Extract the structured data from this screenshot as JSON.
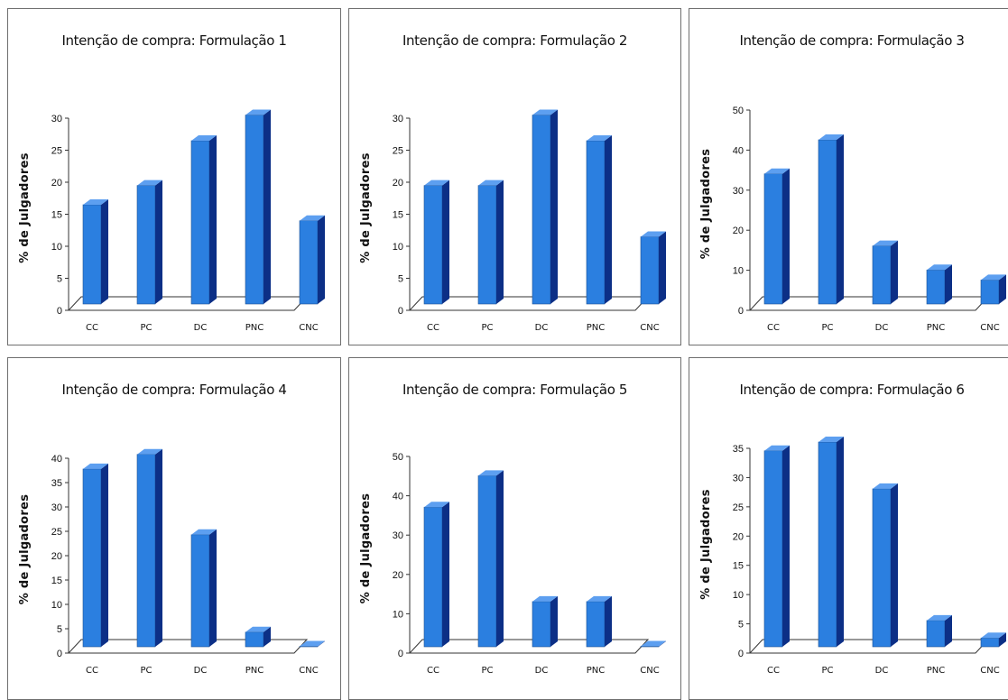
{
  "chart_data": [
    {
      "type": "bar",
      "title": "Intenção de compra: Formulação 1",
      "ylabel": "% de Julgadores",
      "categories": [
        "CC",
        "PC",
        "DC",
        "PNC",
        "CNC"
      ],
      "values": [
        15.5,
        18.5,
        25.5,
        29.5,
        13
      ],
      "yticks": [
        0,
        5,
        10,
        15,
        20,
        25,
        30
      ],
      "ylim": [
        0,
        30
      ],
      "bar_color": "#2b7fe0"
    },
    {
      "type": "bar",
      "title": "Intenção de compra: Formulação 2",
      "ylabel": "% de Julgadores",
      "categories": [
        "CC",
        "PC",
        "DC",
        "PNC",
        "CNC"
      ],
      "values": [
        18.5,
        18.5,
        29.5,
        25.5,
        10.5
      ],
      "yticks": [
        0,
        5,
        10,
        15,
        20,
        25,
        30
      ],
      "ylim": [
        0,
        30
      ],
      "bar_color": "#2b7fe0"
    },
    {
      "type": "bar",
      "title": "Intenção de compra: Formulação 3",
      "ylabel": "% de Julgadores",
      "categories": [
        "CC",
        "PC",
        "DC",
        "PNC",
        "CNC"
      ],
      "values": [
        32.5,
        41,
        14.5,
        8.5,
        6
      ],
      "yticks": [
        0,
        10,
        20,
        30,
        40,
        50
      ],
      "ylim": [
        0,
        50
      ],
      "bar_color": "#2b7fe0"
    },
    {
      "type": "bar",
      "title": "Intenção de compra: Formulação 4",
      "ylabel": "% de Julgadores",
      "categories": [
        "CC",
        "PC",
        "DC",
        "PNC",
        "CNC"
      ],
      "values": [
        36.5,
        39.5,
        23,
        3,
        0
      ],
      "yticks": [
        0,
        5,
        10,
        15,
        20,
        25,
        30,
        35,
        40
      ],
      "ylim": [
        0,
        40
      ],
      "bar_color": "#2b7fe0"
    },
    {
      "type": "bar",
      "title": "Intenção de compra: Formulação 5",
      "ylabel": "% de Julgadores",
      "categories": [
        "CC",
        "PC",
        "DC",
        "PNC",
        "CNC"
      ],
      "values": [
        35.5,
        43.5,
        11.5,
        11.5,
        0
      ],
      "yticks": [
        0,
        10,
        20,
        30,
        40,
        50
      ],
      "ylim": [
        0,
        50
      ],
      "bar_color": "#2b7fe0"
    },
    {
      "type": "bar",
      "title": "Intenção de compra: Formulação 6",
      "ylabel": "% de Julgadores",
      "categories": [
        "CC",
        "PC",
        "DC",
        "PNC",
        "CNC"
      ],
      "values": [
        33.5,
        35,
        27,
        4.5,
        1.5
      ],
      "yticks": [
        0,
        5,
        10,
        15,
        20,
        25,
        30,
        35
      ],
      "ylim": [
        0,
        35
      ],
      "bar_color": "#2b7fe0"
    }
  ]
}
